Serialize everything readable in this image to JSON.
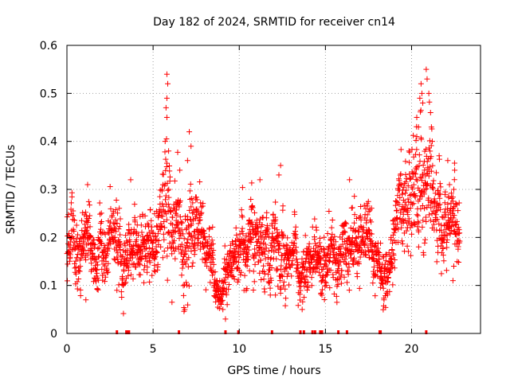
{
  "chart_data": {
    "type": "scatter",
    "title": "Day 182 of 2024, SRMTID for receiver cn14",
    "xlabel": "GPS time / hours",
    "ylabel": "SRMTID / TECUs",
    "xlim": [
      0,
      24
    ],
    "ylim": [
      0,
      0.6
    ],
    "xticks": [
      0,
      5,
      10,
      15,
      20
    ],
    "xtick_labels": [
      "0",
      "5",
      "10",
      "15",
      "20"
    ],
    "yticks": [
      0,
      0.1,
      0.2,
      0.3,
      0.4,
      0.5,
      0.6
    ],
    "ytick_labels": [
      "0",
      "0.1",
      "0.2",
      "0.3",
      "0.4",
      "0.5",
      "0.6"
    ],
    "grid": true,
    "marker": "+",
    "color": "#ff0000",
    "profile": [
      [
        0.0,
        0.19,
        0.05
      ],
      [
        0.5,
        0.2,
        0.06
      ],
      [
        1.0,
        0.19,
        0.05
      ],
      [
        1.5,
        0.17,
        0.04
      ],
      [
        2.0,
        0.19,
        0.05
      ],
      [
        2.5,
        0.2,
        0.05
      ],
      [
        3.0,
        0.18,
        0.05
      ],
      [
        3.5,
        0.19,
        0.05
      ],
      [
        4.0,
        0.16,
        0.05
      ],
      [
        4.5,
        0.18,
        0.05
      ],
      [
        5.0,
        0.19,
        0.05
      ],
      [
        5.5,
        0.23,
        0.07
      ],
      [
        5.8,
        0.28,
        0.12
      ],
      [
        6.3,
        0.22,
        0.07
      ],
      [
        7.0,
        0.25,
        0.08
      ],
      [
        7.5,
        0.19,
        0.05
      ],
      [
        8.0,
        0.17,
        0.05
      ],
      [
        8.5,
        0.13,
        0.04
      ],
      [
        9.0,
        0.1,
        0.03
      ],
      [
        9.5,
        0.14,
        0.04
      ],
      [
        10.0,
        0.17,
        0.05
      ],
      [
        10.5,
        0.18,
        0.05
      ],
      [
        11.0,
        0.19,
        0.05
      ],
      [
        11.5,
        0.17,
        0.05
      ],
      [
        12.0,
        0.19,
        0.05
      ],
      [
        12.5,
        0.2,
        0.06
      ],
      [
        13.0,
        0.17,
        0.04
      ],
      [
        13.5,
        0.12,
        0.04
      ],
      [
        14.0,
        0.13,
        0.04
      ],
      [
        14.5,
        0.16,
        0.04
      ],
      [
        15.0,
        0.17,
        0.05
      ],
      [
        15.5,
        0.17,
        0.04
      ],
      [
        16.0,
        0.18,
        0.05
      ],
      [
        16.5,
        0.18,
        0.05
      ],
      [
        17.0,
        0.17,
        0.05
      ],
      [
        17.5,
        0.17,
        0.05
      ],
      [
        18.0,
        0.16,
        0.04
      ],
      [
        18.5,
        0.13,
        0.04
      ],
      [
        19.0,
        0.19,
        0.05
      ],
      [
        19.5,
        0.24,
        0.06
      ],
      [
        20.0,
        0.27,
        0.08
      ],
      [
        20.5,
        0.31,
        0.1
      ],
      [
        21.0,
        0.3,
        0.09
      ],
      [
        21.5,
        0.26,
        0.07
      ],
      [
        22.0,
        0.21,
        0.06
      ],
      [
        22.5,
        0.23,
        0.05
      ],
      [
        22.8,
        0.24,
        0.04
      ]
    ],
    "outliers": [
      [
        5.8,
        0.54
      ],
      [
        5.85,
        0.52
      ],
      [
        5.8,
        0.49
      ],
      [
        5.75,
        0.47
      ],
      [
        5.8,
        0.45
      ],
      [
        5.7,
        0.4
      ],
      [
        5.9,
        0.38
      ],
      [
        6.55,
        0.34
      ],
      [
        7.1,
        0.42
      ],
      [
        7.2,
        0.39
      ],
      [
        7.0,
        0.36
      ],
      [
        3.7,
        0.32
      ],
      [
        1.2,
        0.31
      ],
      [
        11.2,
        0.32
      ],
      [
        12.4,
        0.35
      ],
      [
        12.3,
        0.33
      ],
      [
        16.4,
        0.32
      ],
      [
        9.2,
        0.03
      ],
      [
        13.65,
        0.05
      ],
      [
        20.3,
        0.45
      ],
      [
        20.4,
        0.43
      ],
      [
        20.55,
        0.52
      ],
      [
        20.6,
        0.5
      ],
      [
        20.65,
        0.48
      ],
      [
        20.85,
        0.55
      ],
      [
        20.9,
        0.53
      ],
      [
        21.0,
        0.5
      ],
      [
        21.1,
        0.46
      ],
      [
        21.15,
        0.43
      ],
      [
        21.2,
        0.4
      ],
      [
        20.3,
        0.41
      ],
      [
        19.85,
        0.38
      ],
      [
        21.6,
        0.37
      ],
      [
        22.1,
        0.36
      ],
      [
        22.5,
        0.34
      ],
      [
        22.45,
        0.3
      ],
      [
        22.2,
        0.31
      ],
      [
        20.75,
        0.34
      ],
      [
        22.4,
        0.11
      ],
      [
        22.45,
        0.14
      ],
      [
        18.4,
        0.07
      ],
      [
        18.6,
        0.08
      ],
      [
        1.1,
        0.07
      ],
      [
        2.9,
        0.09
      ],
      [
        10.4,
        0.09
      ],
      [
        12.1,
        0.08
      ],
      [
        9.05,
        0.05
      ],
      [
        9.3,
        0.06
      ]
    ],
    "zero_markers": [
      2.9,
      3.45,
      3.55,
      3.6,
      6.5,
      9.2,
      9.95,
      11.9,
      13.55,
      13.75,
      14.25,
      14.4,
      14.7,
      14.8,
      15.75,
      16.25,
      18.15,
      18.2,
      20.85
    ],
    "points_per_hour": 100,
    "seed": 182
  }
}
